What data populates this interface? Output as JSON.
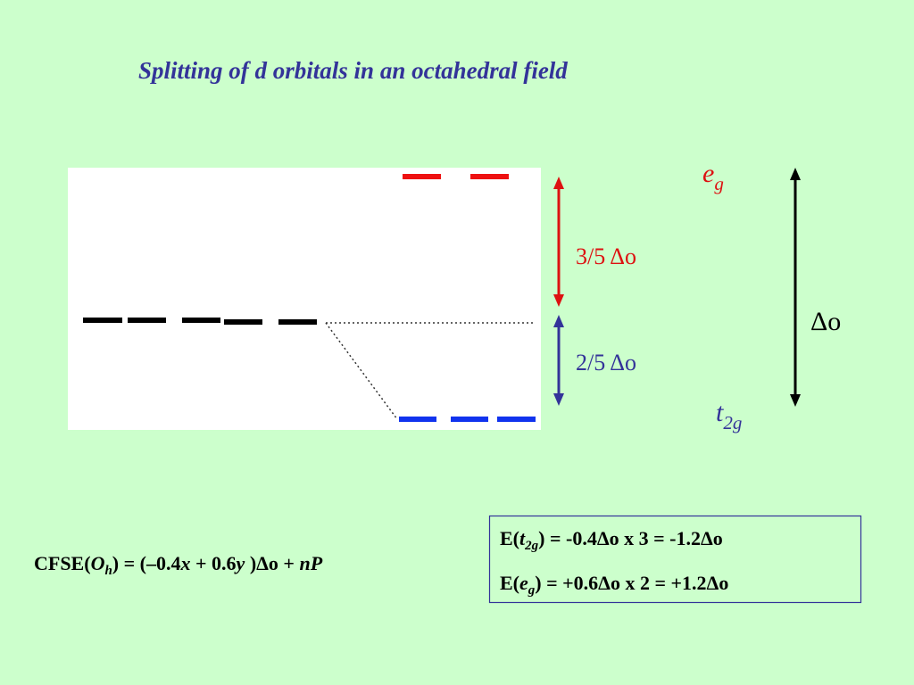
{
  "title": "Splitting of d orbitals in an octahedral field",
  "labels": {
    "eg": {
      "main": "e",
      "sub": "g"
    },
    "upper_gap": "3/5 Δo",
    "lower_gap": "2/5 Δo",
    "total_gap": "Δo",
    "t2g": {
      "main": "t",
      "sub": "2g"
    }
  },
  "formula": {
    "parts": [
      "CFSE(",
      "O",
      "h",
      ") = (–0.4",
      "x",
      " + 0.6",
      "y",
      " )Δo + ",
      "nP"
    ]
  },
  "energies": [
    {
      "prefix": "E(",
      "symbol": "t",
      "sub": "2g",
      "rest": ") = -0.4Δo x 3 = -1.2Δo"
    },
    {
      "prefix": "E(",
      "symbol": "e",
      "sub": "g",
      "rest": ") = +0.6Δo x 2 = +1.2Δo"
    }
  ]
}
